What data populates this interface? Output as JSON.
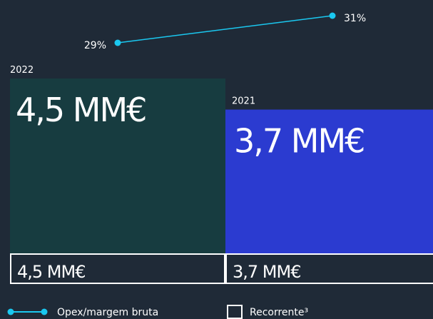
{
  "chart_data": {
    "type": "bar",
    "categories": [
      "2022",
      "2021"
    ],
    "series": [
      {
        "name": "Recorrente³",
        "values": [
          4.5,
          3.7
        ],
        "value_labels": [
          "4,5 MM€",
          "3,7 MM€"
        ],
        "colors": [
          "#173c40",
          "#2b3bd0"
        ],
        "label_color": "#1ad0f0"
      },
      {
        "name": "Opex/margem bruta",
        "type": "line",
        "color": "#1ac8f0",
        "values": [
          29,
          31
        ],
        "value_labels": [
          "29%",
          "31%"
        ]
      }
    ]
  }
}
